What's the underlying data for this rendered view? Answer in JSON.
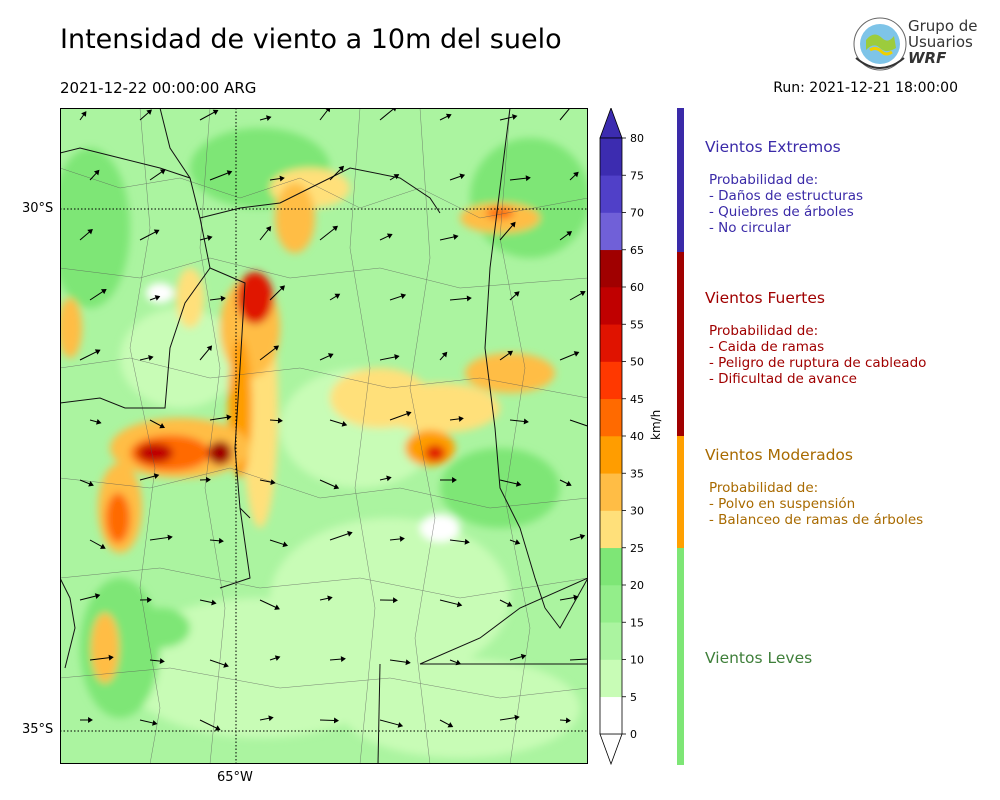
{
  "title": "Intensidad de viento a 10m del suelo",
  "valid_time": "2021-12-22 00:00:00 ARG",
  "run_time": "Run: 2021-12-21 18:00:00",
  "logo": {
    "line1": "Grupo de",
    "line2": "Usuarios",
    "line3": "WRF"
  },
  "map": {
    "lat_labels": [
      {
        "text": "30°S",
        "value": -30
      },
      {
        "text": "35°S",
        "value": -35
      }
    ],
    "lon_labels": [
      {
        "text": "65°W",
        "value": -65
      }
    ]
  },
  "colorbar": {
    "unit": "km/h",
    "ticks": [
      "0",
      "5",
      "10",
      "15",
      "20",
      "25",
      "30",
      "35",
      "40",
      "45",
      "50",
      "55",
      "60",
      "65",
      "70",
      "75",
      "80"
    ],
    "colors": [
      "#ffffff",
      "#c8fcb6",
      "#abf4a0",
      "#93ee8a",
      "#7ee676",
      "#ffe07a",
      "#ffbd45",
      "#ff9d00",
      "#ff6a00",
      "#ff3800",
      "#e01300",
      "#c00000",
      "#a00000",
      "#7060d8",
      "#5040c8",
      "#3c2cb0"
    ]
  },
  "legend": [
    {
      "title": "Vientos Extremos",
      "color": "#3a2aa8",
      "text_color": "#3a2aa8",
      "items": [
        "Probabilidad de:",
        "- Daños de estructuras",
        "- Quiebres de árboles",
        "- No circular"
      ]
    },
    {
      "title": "Vientos Fuertes",
      "color": "#a00000",
      "text_color": "#a00000",
      "items": [
        "Probabilidad de:",
        "- Caida de ramas",
        "- Peligro de ruptura de cableado",
        "- Dificultad de avance"
      ]
    },
    {
      "title": "Vientos Moderados",
      "color": "#ffa000",
      "text_color": "#a86a00",
      "items": [
        "Probabilidad de:",
        "- Polvo en suspensión",
        "- Balanceo de ramas de árboles"
      ]
    },
    {
      "title": "Vientos Leves",
      "color": "#7ee676",
      "text_color": "#3f7f3a",
      "items": []
    }
  ]
}
